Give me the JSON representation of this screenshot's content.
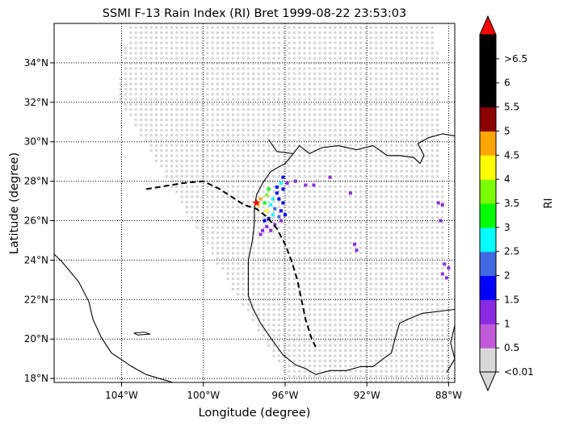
{
  "chart_data": {
    "type": "heatmap",
    "title": "SSMI F-13 Rain Index (RI) Bret 1999-08-22 23:53:03",
    "xlabel": "Longitude (degree)",
    "ylabel": "Latitude (degree)",
    "xlim": [
      -107.3,
      -87.7
    ],
    "ylim": [
      17.8,
      36.0
    ],
    "x_ticks": [
      -104,
      -100,
      -96,
      -92,
      -88
    ],
    "x_tick_labels": [
      "104°W",
      "100°W",
      "96°W",
      "92°W",
      "88°W"
    ],
    "y_ticks": [
      18,
      20,
      22,
      24,
      26,
      28,
      30,
      32,
      34
    ],
    "y_tick_labels": [
      "18°N",
      "20°N",
      "22°N",
      "24°N",
      "26°N",
      "28°N",
      "30°N",
      "32°N",
      "34°N"
    ],
    "grid": "dotted",
    "colorbar": {
      "label": "RI",
      "tick_labels": [
        "<0.01",
        "0.5",
        "1",
        "1.5",
        "2",
        "2.5",
        "3",
        "3.5",
        "4",
        "4.5",
        "5",
        "5.5",
        "6",
        ">6.5"
      ],
      "colors": [
        "#d8d8d8",
        "#c05ad6",
        "#8a2be2",
        "#0000ff",
        "#4169e1",
        "#00ffff",
        "#00ff00",
        "#7cfc00",
        "#ffff00",
        "#ffa500",
        "#8b0000",
        "#000000",
        "#000000",
        "#000000",
        "#ff0000"
      ]
    },
    "swath_color": "#d3d3d3",
    "track": {
      "style": "dashed",
      "points": [
        [
          -102.8,
          27.6
        ],
        [
          -101.0,
          27.9
        ],
        [
          -100.0,
          28.0
        ],
        [
          -99.2,
          27.6
        ],
        [
          -98.6,
          27.2
        ],
        [
          -98.0,
          26.8
        ],
        [
          -97.4,
          26.6
        ],
        [
          -96.9,
          26.2
        ],
        [
          -96.4,
          25.6
        ],
        [
          -96.0,
          24.8
        ],
        [
          -95.7,
          24.0
        ],
        [
          -95.4,
          23.0
        ],
        [
          -95.2,
          22.0
        ],
        [
          -95.0,
          21.0
        ],
        [
          -94.7,
          20.0
        ],
        [
          -94.5,
          19.6
        ]
      ]
    },
    "storm_center": [
      -97.4,
      26.9
    ],
    "rain_points": [
      [
        -96.1,
        28.2,
        1.2
      ],
      [
        -95.9,
        27.9,
        0.6
      ],
      [
        -95.5,
        28.0,
        0.5
      ],
      [
        -95.0,
        27.8,
        0.5
      ],
      [
        -94.6,
        27.8,
        0.6
      ],
      [
        -93.8,
        28.2,
        0.6
      ],
      [
        -92.8,
        27.4,
        0.5
      ],
      [
        -96.2,
        27.9,
        2.2
      ],
      [
        -96.4,
        27.7,
        1.2
      ],
      [
        -96.1,
        27.6,
        1.0
      ],
      [
        -96.4,
        27.4,
        1.3
      ],
      [
        -96.8,
        27.6,
        2.7
      ],
      [
        -96.9,
        27.3,
        3.2
      ],
      [
        -96.6,
        27.1,
        2.2
      ],
      [
        -96.3,
        27.1,
        1.2
      ],
      [
        -96.1,
        26.9,
        1.1
      ],
      [
        -96.7,
        26.8,
        2.4
      ],
      [
        -97.0,
        26.9,
        2.8
      ],
      [
        -96.5,
        26.6,
        1.8
      ],
      [
        -96.2,
        26.5,
        1.2
      ],
      [
        -96.0,
        26.3,
        1.4
      ],
      [
        -96.9,
        26.5,
        3.8
      ],
      [
        -96.6,
        26.3,
        2.2
      ],
      [
        -96.3,
        26.2,
        1.6
      ],
      [
        -96.2,
        26.0,
        0.8
      ],
      [
        -96.8,
        26.1,
        1.2
      ],
      [
        -97.0,
        26.0,
        1.1
      ],
      [
        -96.5,
        25.8,
        0.6
      ],
      [
        -96.9,
        25.7,
        0.7
      ],
      [
        -97.1,
        25.5,
        0.5
      ],
      [
        -97.2,
        25.3,
        0.6
      ],
      [
        -96.7,
        25.5,
        0.8
      ],
      [
        -97.2,
        27.1,
        4.2
      ],
      [
        -97.3,
        26.8,
        3.6
      ],
      [
        -92.6,
        24.8,
        0.6
      ],
      [
        -92.5,
        24.5,
        0.7
      ],
      [
        -88.5,
        26.9,
        0.5
      ],
      [
        -88.3,
        26.8,
        0.6
      ],
      [
        -88.4,
        26.0,
        0.5
      ],
      [
        -88.2,
        23.8,
        0.5
      ],
      [
        -88.0,
        23.6,
        0.5
      ],
      [
        -88.3,
        23.3,
        0.6
      ],
      [
        -88.1,
        23.1,
        0.5
      ]
    ]
  }
}
